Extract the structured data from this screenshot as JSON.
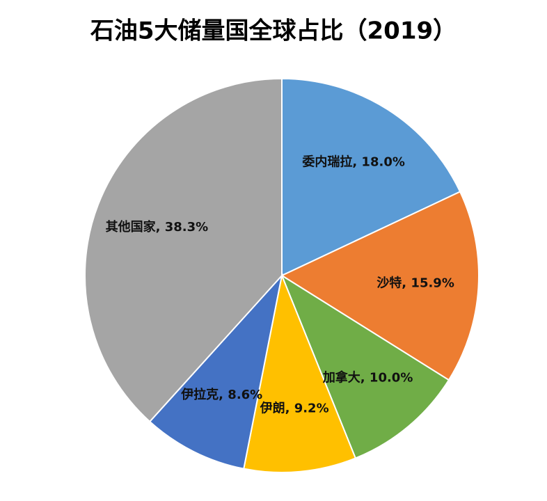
{
  "chart_data": {
    "type": "pie",
    "title": "石油5大储量国全球占比（2019）",
    "values": [
      18.0,
      15.9,
      10.0,
      9.2,
      8.6,
      38.3
    ],
    "value_labels": [
      "委内瑞拉, 18.0%",
      "沙特, 15.9%",
      "加拿大, 10.0%",
      "伊朗, 9.2%",
      "伊拉克, 8.6%",
      "其他国家, 38.3%"
    ],
    "colors": [
      "#5b9bd5",
      "#ed7d31",
      "#70ad47",
      "#ffc000",
      "#4472c4",
      "#a5a5a5"
    ]
  }
}
